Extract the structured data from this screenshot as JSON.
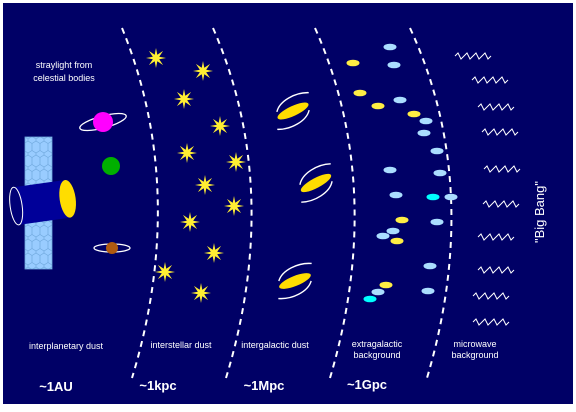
{
  "labels": {
    "straylight_line1": "straylight from",
    "straylight_line2": "celestial bodies",
    "interplanetary": "interplanetary dust",
    "interstellar": "interstellar dust",
    "intergalactic": "intergalactic dust",
    "extragalactic_line1": "extragalactic",
    "extragalactic_line2": "background",
    "microwave_line1": "microwave",
    "microwave_line2": "background",
    "big_bang": "\"Big Bang\""
  },
  "scales": [
    "~1AU",
    "~1kpc",
    "~1Mpc",
    "~1Gpc"
  ],
  "colors": {
    "background": "#000066",
    "border": "#ffffff",
    "dashed_line": "#ffffff",
    "star": "#ffee33",
    "planet_magenta": "#ff00ff",
    "planet_green": "#00b000",
    "planet_brown": "#b05a10",
    "galaxy": "#ffdd00",
    "source_light_blue": "#aaddff",
    "source_yellow": "#ffee44",
    "source_cyan": "#00ffff",
    "wave": "#ffffff",
    "solar_panel": "#99ccff",
    "telescope_tube": "#000099",
    "telescope_mirror": "#ffdd00"
  },
  "icons": [
    "telescope-icon",
    "planet-icon",
    "star-icon",
    "galaxy-icon",
    "wave-icon"
  ]
}
